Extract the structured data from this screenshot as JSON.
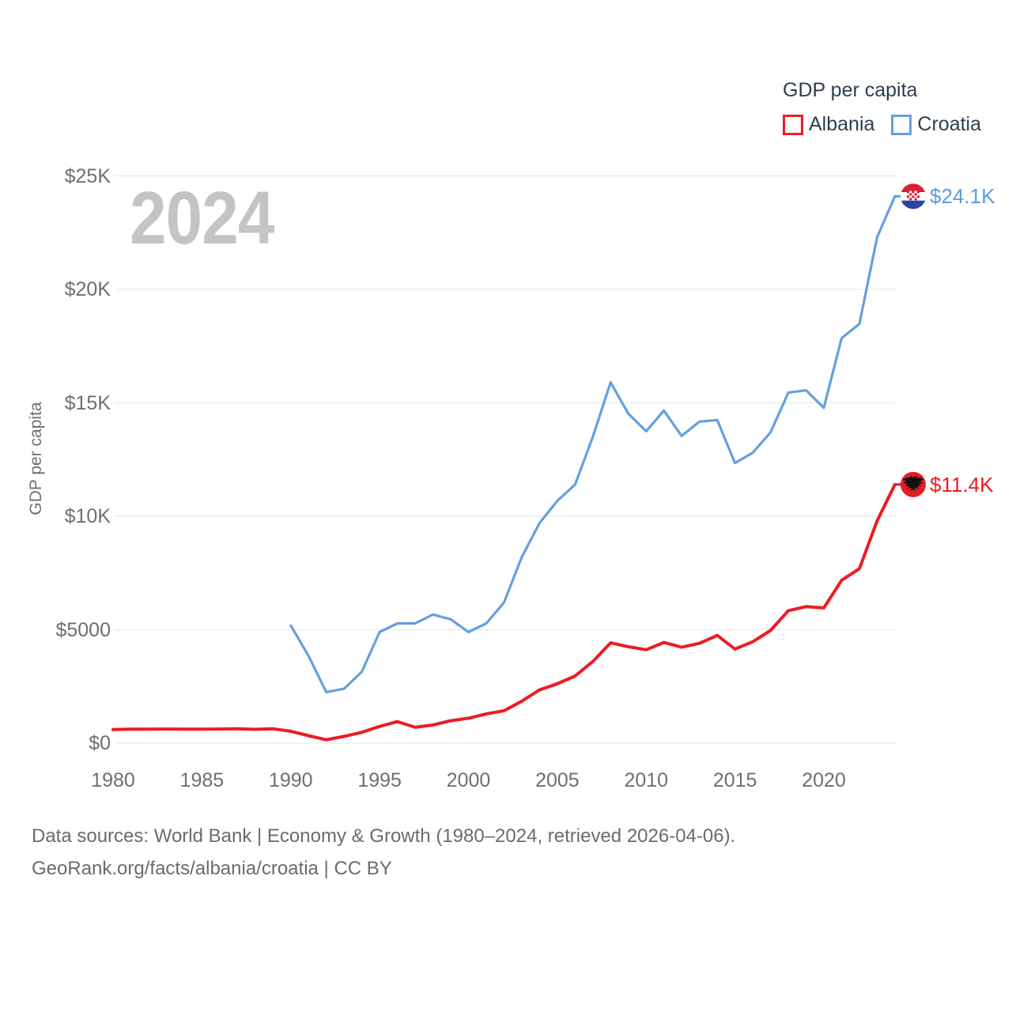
{
  "watermark": "2024",
  "legend": {
    "title": "GDP per capita",
    "items": [
      {
        "label": "Albania",
        "color": "#ec1c24"
      },
      {
        "label": "Croatia",
        "color": "#64a0e0"
      }
    ]
  },
  "y_axis_title": "GDP per capita",
  "footer": {
    "line1": "Data sources: World Bank | Economy & Growth (1980–2024, retrieved 2026-04-06).",
    "line2": "GeoRank.org/facts/albania/croatia | CC BY"
  },
  "colors": {
    "albania": "#ec1c24",
    "croatia_line": "#64a0e0",
    "croatia_label": "#5c9cde",
    "gridline": "#e9e9e9",
    "tick_text": "#6f6f6f",
    "legend_text": "#2d3e50",
    "watermark": "#c4c4c4",
    "croatia_flag_red": "#dd2033",
    "croatia_flag_blue": "#2b46a0",
    "albania_flag_red": "#e41d25"
  },
  "chart_data": {
    "type": "line",
    "title": "GDP per capita",
    "xlabel": "",
    "ylabel": "GDP per capita",
    "xlim": [
      1980,
      2024
    ],
    "ylim": [
      0,
      25000
    ],
    "grid": "horizontal",
    "legend_position": "top-right",
    "x_ticks": [
      1980,
      1985,
      1990,
      1995,
      2000,
      2005,
      2010,
      2015,
      2020
    ],
    "y_ticks": [
      {
        "label": "$0",
        "value": 0
      },
      {
        "label": "$5000",
        "value": 5000
      },
      {
        "label": "$10K",
        "value": 10000
      },
      {
        "label": "$15K",
        "value": 15000
      },
      {
        "label": "$20K",
        "value": 20000
      },
      {
        "label": "$25K",
        "value": 25000
      }
    ],
    "series": [
      {
        "name": "Croatia",
        "color": "#64a0e0",
        "flag": "croatia",
        "end_label": "$24.1K",
        "end_value": 24100,
        "years": [
          1990,
          1991,
          1992,
          1993,
          1994,
          1995,
          1996,
          1997,
          1998,
          1999,
          2000,
          2001,
          2002,
          2003,
          2004,
          2005,
          2006,
          2007,
          2008,
          2009,
          2010,
          2011,
          2012,
          2013,
          2014,
          2015,
          2016,
          2017,
          2018,
          2019,
          2020,
          2021,
          2022,
          2023,
          2024
        ],
        "values": [
          5185,
          3850,
          2250,
          2400,
          3150,
          4900,
          5280,
          5280,
          5670,
          5460,
          4900,
          5280,
          6200,
          8200,
          9700,
          10680,
          11400,
          13500,
          15900,
          14520,
          13750,
          14660,
          13540,
          14170,
          14240,
          12350,
          12800,
          13700,
          15450,
          15550,
          14780,
          17850,
          18480,
          22300,
          24100
        ]
      },
      {
        "name": "Albania",
        "color": "#ec1c24",
        "flag": "albania",
        "end_label": "$11.4K",
        "end_value": 11400,
        "years": [
          1980,
          1981,
          1982,
          1983,
          1984,
          1985,
          1986,
          1987,
          1988,
          1989,
          1990,
          1991,
          1992,
          1993,
          1994,
          1995,
          1996,
          1997,
          1998,
          1999,
          2000,
          2001,
          2002,
          2003,
          2004,
          2005,
          2006,
          2007,
          2008,
          2009,
          2010,
          2011,
          2012,
          2013,
          2014,
          2015,
          2016,
          2017,
          2018,
          2019,
          2020,
          2021,
          2022,
          2023,
          2024
        ],
        "values": [
          600,
          615,
          620,
          625,
          620,
          615,
          625,
          635,
          610,
          635,
          525,
          330,
          150,
          300,
          480,
          740,
          950,
          700,
          800,
          990,
          1100,
          1290,
          1430,
          1850,
          2350,
          2620,
          2960,
          3600,
          4420,
          4250,
          4120,
          4440,
          4230,
          4400,
          4750,
          4150,
          4470,
          4970,
          5840,
          6020,
          5960,
          7180,
          7690,
          9800,
          11400
        ]
      }
    ]
  }
}
